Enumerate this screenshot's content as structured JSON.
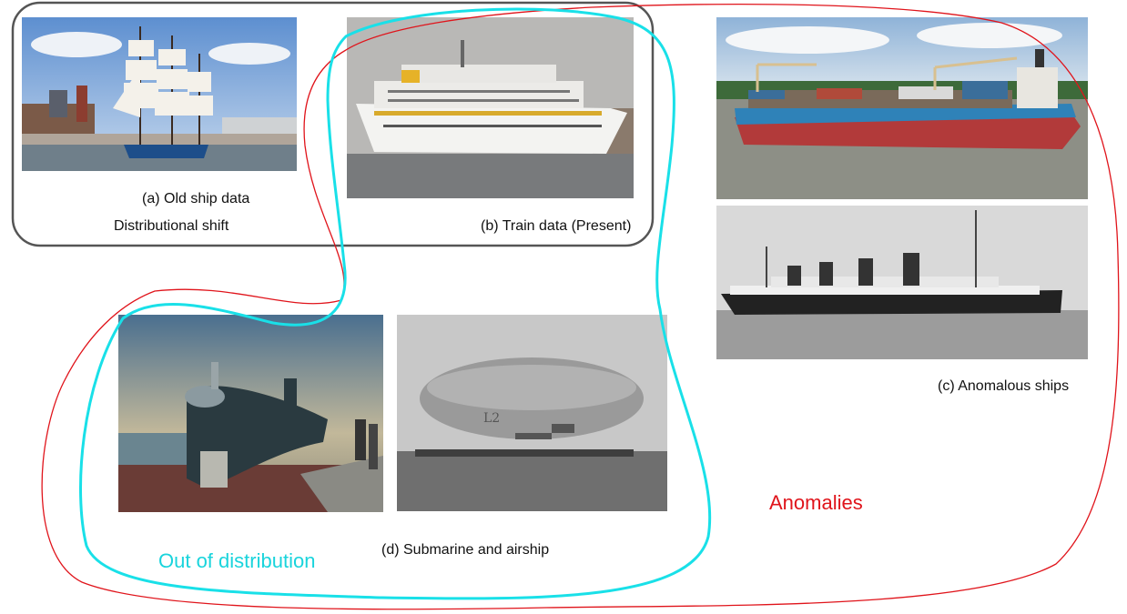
{
  "labels": {
    "old_ship": "(a) Old ship data",
    "dist_shift": "Distributional shift",
    "train": "(b)  Train data (Present)",
    "anomalous": "(c)   Anomalous ships",
    "submarine": "(d) Submarine and airship",
    "ood": "Out of distribution",
    "anomalies": "Anomalies"
  },
  "colors": {
    "ood": "#19e0e8",
    "anomalies": "#e0141b",
    "shift_box": "#555555"
  }
}
